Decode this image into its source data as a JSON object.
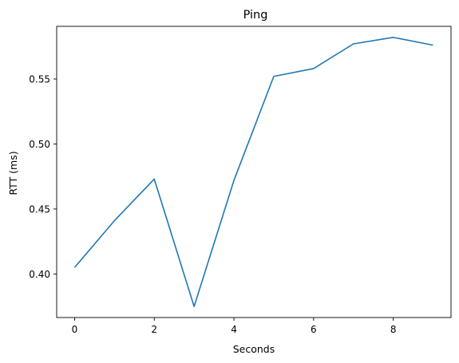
{
  "chart_data": {
    "type": "line",
    "title": "Ping",
    "xlabel": "Seconds",
    "ylabel": "RTT (ms)",
    "x": [
      0,
      1,
      2,
      3,
      4,
      5,
      6,
      7,
      8,
      9
    ],
    "series": [
      {
        "values": [
          0.405,
          0.441,
          0.473,
          0.375,
          0.472,
          0.552,
          0.558,
          0.577,
          0.582,
          0.576
        ],
        "color": "#1f77b4"
      }
    ],
    "xlim": [
      -0.45,
      9.45
    ],
    "ylim": [
      0.3665,
      0.5905
    ],
    "xticks": [
      0,
      2,
      4,
      6,
      8
    ],
    "yticks": [
      0.4,
      0.45,
      0.5,
      0.55
    ],
    "xtick_labels": [
      "0",
      "2",
      "4",
      "6",
      "8"
    ],
    "ytick_labels": [
      "0.40",
      "0.45",
      "0.50",
      "0.55"
    ],
    "grid": false,
    "legend": "none"
  }
}
